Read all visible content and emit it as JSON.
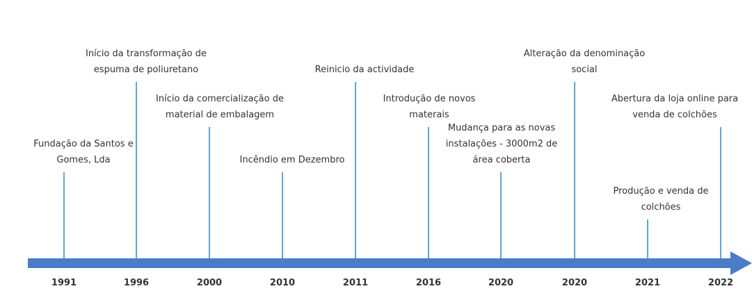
{
  "events": [
    {
      "year": "1991",
      "lines": [
        "Fundação da Santos e",
        "Gomes, Lda"
      ]
    },
    {
      "year": "1996",
      "lines": [
        "Início da transformação de",
        "espuma de poliuretano"
      ]
    },
    {
      "year": "2000",
      "lines": [
        "Início da comercialização de",
        "material de embalagem"
      ]
    },
    {
      "year": "2010",
      "lines": [
        "Incêndio em Dezembro"
      ]
    },
    {
      "year": "2011",
      "lines": [
        "Reinicio da actividade"
      ]
    },
    {
      "year": "2016",
      "lines": [
        "Introdução de novos",
        "materais"
      ]
    },
    {
      "year": "2020",
      "lines": [
        "Mudança para as novas",
        "instalações - 3000m2 de",
        "área coberta"
      ]
    },
    {
      "year": "2020",
      "lines": [
        "Alteração da denominação",
        "social"
      ]
    },
    {
      "year": "2021",
      "lines": [
        "Produção e venda de",
        "colchões"
      ]
    },
    {
      "year": "2022",
      "lines": [
        "Abertura da loja online para",
        "venda de colchões"
      ]
    }
  ]
}
